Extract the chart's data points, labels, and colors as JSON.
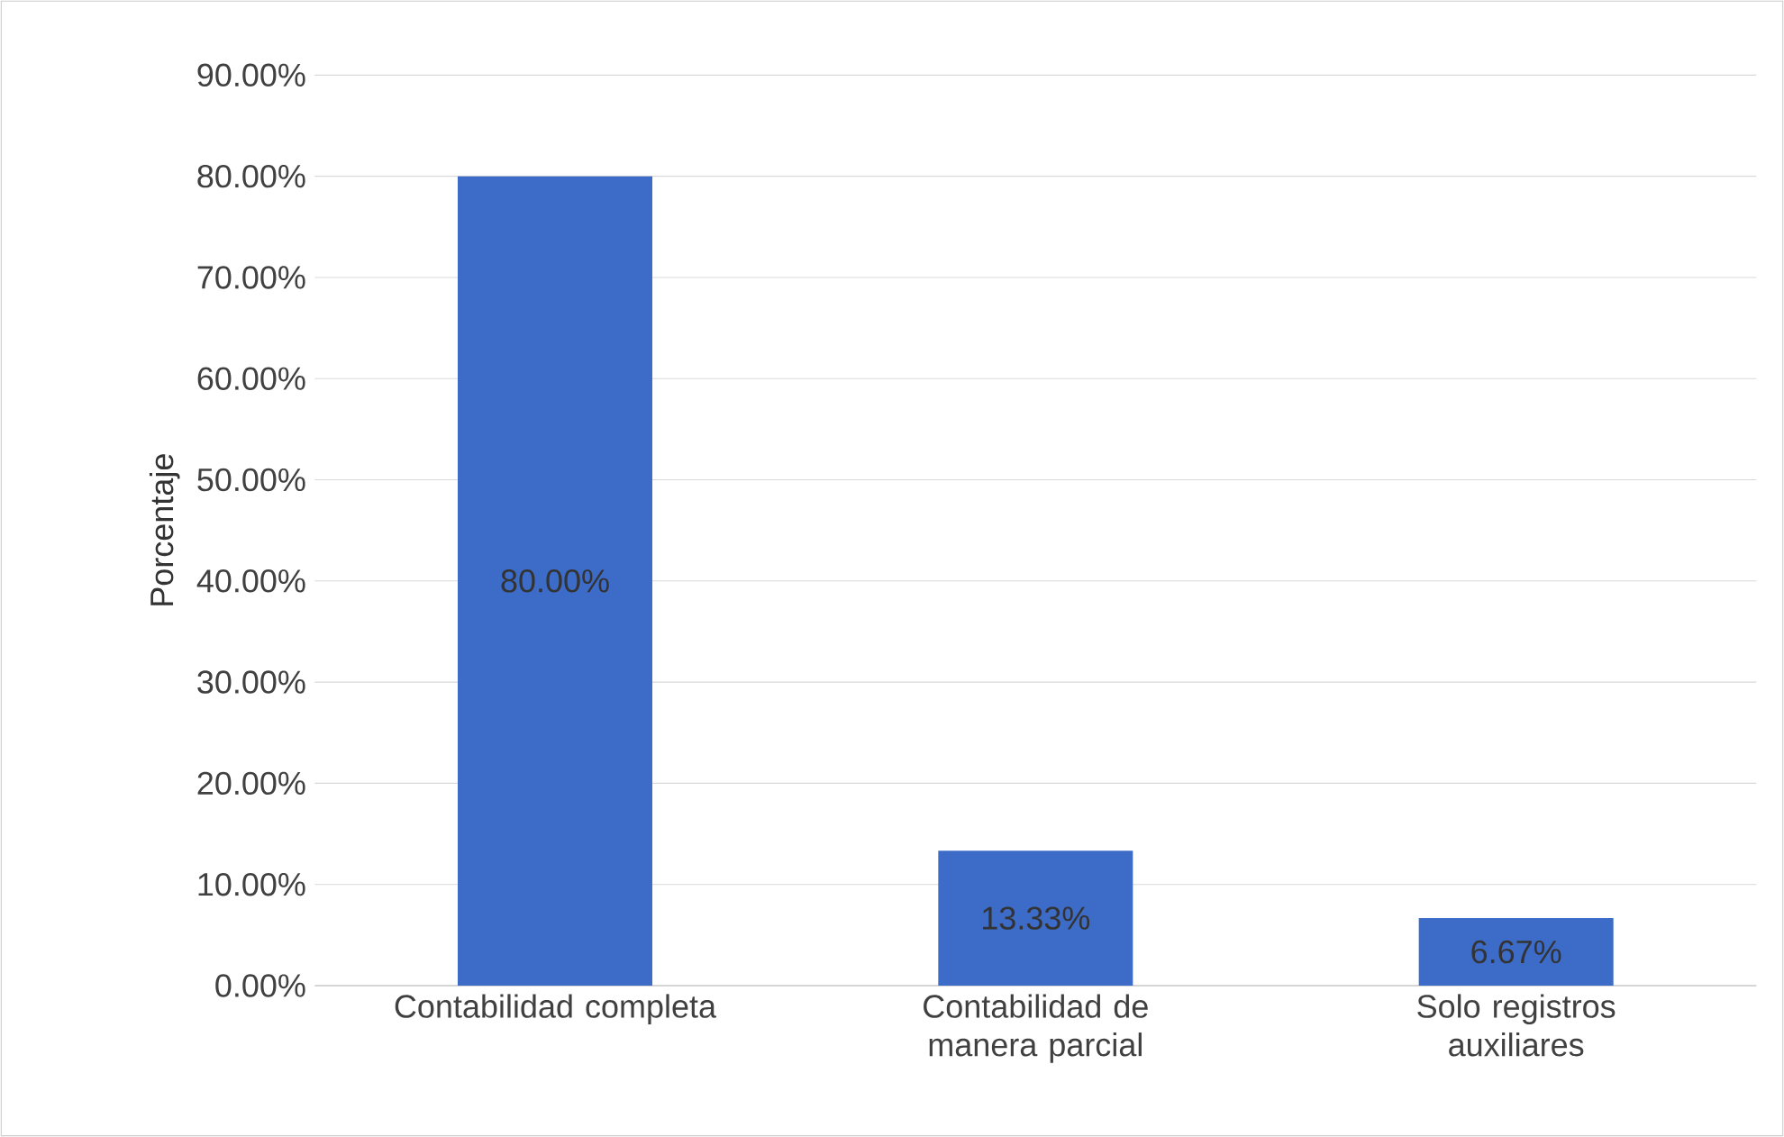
{
  "chart_data": {
    "type": "bar",
    "ylabel": "Porcentaje",
    "categories": [
      "Contabilidad completa",
      "Contabilidad de manera parcial",
      "Solo registros auxiliares"
    ],
    "values": [
      80,
      13.33,
      6.67
    ],
    "value_labels": [
      "80.00%",
      "13.33%",
      "6.67%"
    ],
    "color": "#3c6cc8",
    "ylim": [
      0,
      90
    ],
    "yticks": [
      {
        "value": 0,
        "label": "0.00%"
      },
      {
        "value": 10,
        "label": "10.00%"
      },
      {
        "value": 20,
        "label": "20.00%"
      },
      {
        "value": 30,
        "label": "30.00%"
      },
      {
        "value": 40,
        "label": "40.00%"
      },
      {
        "value": 50,
        "label": "50.00%"
      },
      {
        "value": 60,
        "label": "60.00%"
      },
      {
        "value": 70,
        "label": "70.00%"
      },
      {
        "value": 80,
        "label": "80.00%"
      },
      {
        "value": 90,
        "label": "90.00%"
      }
    ],
    "grid": "y"
  }
}
